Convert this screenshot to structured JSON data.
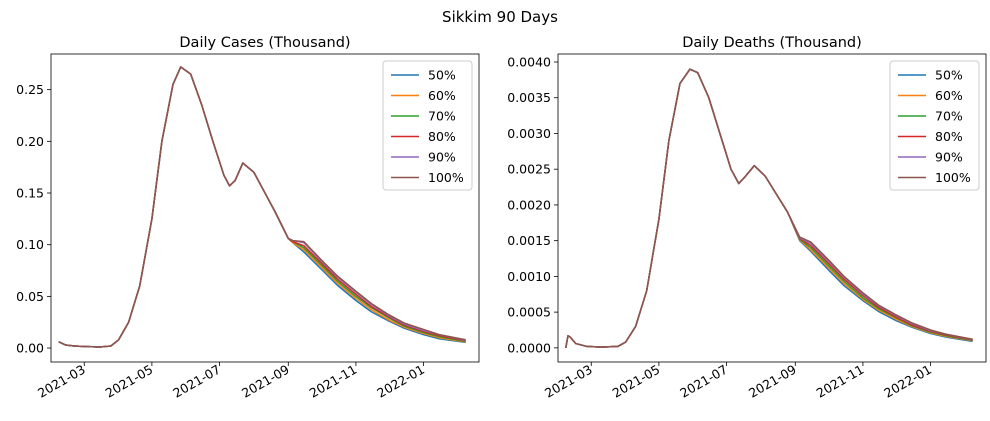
{
  "figure": {
    "suptitle": "Sikkim 90 Days"
  },
  "colors": {
    "50%": "#1f77b4",
    "60%": "#ff7f0e",
    "70%": "#2ca02c",
    "80%": "#d62728",
    "90%": "#9467bd",
    "100%": "#8c564b"
  },
  "chart_data": [
    {
      "type": "line",
      "title": "Daily Cases (Thousand)",
      "xlabel": "",
      "ylabel": "",
      "x_ticks": [
        "2021-03",
        "2021-05",
        "2021-07",
        "2021-09",
        "2021-11",
        "2022-01"
      ],
      "x_tick_dates": [
        "2021-03-01",
        "2021-05-01",
        "2021-07-01",
        "2021-09-01",
        "2021-11-01",
        "2022-01-01"
      ],
      "xlim": [
        "2021-01-30",
        "2022-02-20"
      ],
      "y_ticks": [
        "0.00",
        "0.05",
        "0.10",
        "0.15",
        "0.20",
        "0.25"
      ],
      "y_tick_values": [
        0,
        0.05,
        0.1,
        0.15,
        0.2,
        0.25
      ],
      "ylim": [
        -0.0135,
        0.2845
      ],
      "legend": "top-right",
      "grid": false,
      "base_curve": {
        "x": [
          "2021-02-06",
          "2021-02-12",
          "2021-02-20",
          "2021-03-01",
          "2021-03-15",
          "2021-03-25",
          "2021-04-01",
          "2021-04-10",
          "2021-04-20",
          "2021-05-01",
          "2021-05-10",
          "2021-05-20",
          "2021-05-27",
          "2021-06-05",
          "2021-06-15",
          "2021-06-25",
          "2021-07-05",
          "2021-07-10",
          "2021-07-15",
          "2021-07-22",
          "2021-08-01",
          "2021-08-10",
          "2021-08-20",
          "2021-09-01",
          "2021-09-15",
          "2021-10-01",
          "2021-10-15",
          "2021-11-01",
          "2021-11-15",
          "2021-12-01",
          "2021-12-15",
          "2022-01-01",
          "2022-01-15",
          "2022-02-08"
        ],
        "y": [
          0.006,
          0.003,
          0.002,
          0.0015,
          0.001,
          0.002,
          0.008,
          0.025,
          0.06,
          0.125,
          0.2,
          0.255,
          0.272,
          0.265,
          0.235,
          0.2,
          0.167,
          0.157,
          0.162,
          0.179,
          0.17,
          0.152,
          0.132,
          0.106,
          0.096,
          0.078,
          0.063,
          0.048,
          0.037,
          0.027,
          0.02,
          0.014,
          0.01,
          0.006
        ]
      },
      "series": [
        {
          "name": "50%",
          "x": [
            "2021-09-05",
            "2021-09-15",
            "2021-10-01",
            "2021-10-15",
            "2021-11-01",
            "2021-11-15",
            "2021-12-01",
            "2021-12-15",
            "2022-01-01",
            "2022-01-15",
            "2022-02-08"
          ],
          "y": [
            0.102,
            0.093,
            0.076,
            0.061,
            0.046,
            0.035,
            0.026,
            0.019,
            0.013,
            0.009,
            0.0055
          ]
        },
        {
          "name": "60%",
          "x": [
            "2021-09-05",
            "2021-09-15",
            "2021-10-01",
            "2021-10-15",
            "2021-11-01",
            "2021-11-15",
            "2021-12-01",
            "2021-12-15",
            "2022-01-01",
            "2022-01-15",
            "2022-02-08"
          ],
          "y": [
            0.102,
            0.095,
            0.078,
            0.063,
            0.048,
            0.037,
            0.027,
            0.02,
            0.014,
            0.01,
            0.006
          ]
        },
        {
          "name": "70%",
          "x": [
            "2021-09-05",
            "2021-09-15",
            "2021-10-01",
            "2021-10-15",
            "2021-11-01",
            "2021-11-15",
            "2021-12-01",
            "2021-12-15",
            "2022-01-01",
            "2022-01-15",
            "2022-02-08"
          ],
          "y": [
            0.103,
            0.097,
            0.08,
            0.065,
            0.05,
            0.039,
            0.029,
            0.021,
            0.015,
            0.011,
            0.0065
          ]
        },
        {
          "name": "80%",
          "x": [
            "2021-09-05",
            "2021-09-15",
            "2021-10-01",
            "2021-10-15",
            "2021-11-01",
            "2021-11-15",
            "2021-12-01",
            "2021-12-15",
            "2022-01-01",
            "2022-01-15",
            "2022-02-08"
          ],
          "y": [
            0.103,
            0.099,
            0.082,
            0.067,
            0.052,
            0.04,
            0.03,
            0.022,
            0.016,
            0.012,
            0.007
          ]
        },
        {
          "name": "90%",
          "x": [
            "2021-09-05",
            "2021-09-15",
            "2021-10-01",
            "2021-10-15",
            "2021-11-01",
            "2021-11-15",
            "2021-12-01",
            "2021-12-15",
            "2022-01-01",
            "2022-01-15",
            "2022-02-08"
          ],
          "y": [
            0.104,
            0.102,
            0.084,
            0.069,
            0.054,
            0.042,
            0.031,
            0.023,
            0.017,
            0.013,
            0.0075
          ]
        },
        {
          "name": "100%",
          "x": [
            "2021-09-05",
            "2021-09-15",
            "2021-10-01",
            "2021-10-15",
            "2021-11-01",
            "2021-11-15",
            "2021-12-01",
            "2021-12-15",
            "2022-01-01",
            "2022-01-15",
            "2022-02-08"
          ],
          "y": [
            0.104,
            0.103,
            0.085,
            0.07,
            0.055,
            0.043,
            0.032,
            0.024,
            0.018,
            0.013,
            0.008
          ]
        }
      ]
    },
    {
      "type": "line",
      "title": "Daily Deaths (Thousand)",
      "xlabel": "",
      "ylabel": "",
      "x_ticks": [
        "2021-03",
        "2021-05",
        "2021-07",
        "2021-09",
        "2021-11",
        "2022-01"
      ],
      "x_tick_dates": [
        "2021-03-01",
        "2021-05-01",
        "2021-07-01",
        "2021-09-01",
        "2021-11-01",
        "2022-01-01"
      ],
      "xlim": [
        "2021-01-30",
        "2022-02-20"
      ],
      "y_ticks": [
        "0.0000",
        "0.0005",
        "0.0010",
        "0.0015",
        "0.0020",
        "0.0025",
        "0.0030",
        "0.0035",
        "0.0040"
      ],
      "y_tick_values": [
        0,
        0.0005,
        0.001,
        0.0015,
        0.002,
        0.0025,
        0.003,
        0.0035,
        0.004
      ],
      "ylim": [
        -0.000198,
        0.004112
      ],
      "legend": "top-right",
      "grid": false,
      "base_curve": {
        "x": [
          "2021-02-06",
          "2021-02-08",
          "2021-02-10",
          "2021-02-15",
          "2021-02-25",
          "2021-03-10",
          "2021-03-25",
          "2021-04-01",
          "2021-04-10",
          "2021-04-20",
          "2021-05-01",
          "2021-05-10",
          "2021-05-20",
          "2021-05-29",
          "2021-06-05",
          "2021-06-15",
          "2021-06-25",
          "2021-07-05",
          "2021-07-12",
          "2021-07-18",
          "2021-07-26",
          "2021-08-05",
          "2021-08-15",
          "2021-08-25",
          "2021-09-05",
          "2021-09-15",
          "2021-10-01",
          "2021-10-15",
          "2021-11-01",
          "2021-11-15",
          "2021-12-01",
          "2021-12-15",
          "2022-01-01",
          "2022-01-15",
          "2022-02-08"
        ],
        "y": [
          0.0,
          0.00017,
          0.00015,
          6e-05,
          2e-05,
          1e-05,
          2e-05,
          8e-05,
          0.0003,
          0.0008,
          0.0018,
          0.0029,
          0.0037,
          0.0039,
          0.00385,
          0.0035,
          0.003,
          0.0025,
          0.0023,
          0.0024,
          0.00255,
          0.0024,
          0.00215,
          0.0019,
          0.00155,
          0.0014,
          0.00115,
          0.00092,
          0.0007,
          0.00054,
          0.00041,
          0.00031,
          0.00022,
          0.00016,
          0.0001
        ]
      },
      "series": [
        {
          "name": "50%",
          "x": [
            "2021-09-05",
            "2021-09-15",
            "2021-10-01",
            "2021-10-15",
            "2021-11-01",
            "2021-11-15",
            "2021-12-01",
            "2021-12-15",
            "2022-01-01",
            "2022-01-15",
            "2022-02-08"
          ],
          "y": [
            0.0015,
            0.00135,
            0.00109,
            0.00087,
            0.00066,
            0.00051,
            0.00038,
            0.00029,
            0.0002,
            0.00015,
            9e-05
          ]
        },
        {
          "name": "60%",
          "x": [
            "2021-09-05",
            "2021-09-15",
            "2021-10-01",
            "2021-10-15",
            "2021-11-01",
            "2021-11-15",
            "2021-12-01",
            "2021-12-15",
            "2022-01-01",
            "2022-01-15",
            "2022-02-08"
          ],
          "y": [
            0.00151,
            0.00137,
            0.00112,
            0.0009,
            0.00068,
            0.00053,
            0.0004,
            0.0003,
            0.00021,
            0.00016,
            0.0001
          ]
        },
        {
          "name": "70%",
          "x": [
            "2021-09-05",
            "2021-09-15",
            "2021-10-01",
            "2021-10-15",
            "2021-11-01",
            "2021-11-15",
            "2021-12-01",
            "2021-12-15",
            "2022-01-01",
            "2022-01-15",
            "2022-02-08"
          ],
          "y": [
            0.00152,
            0.0014,
            0.00115,
            0.00093,
            0.0007,
            0.00055,
            0.00042,
            0.00031,
            0.00022,
            0.00017,
            0.000105
          ]
        },
        {
          "name": "80%",
          "x": [
            "2021-09-05",
            "2021-09-15",
            "2021-10-01",
            "2021-10-15",
            "2021-11-01",
            "2021-11-15",
            "2021-12-01",
            "2021-12-15",
            "2022-01-01",
            "2022-01-15",
            "2022-02-08"
          ],
          "y": [
            0.00153,
            0.00143,
            0.00118,
            0.00096,
            0.00073,
            0.00057,
            0.00043,
            0.00032,
            0.00023,
            0.00018,
            0.00011
          ]
        },
        {
          "name": "90%",
          "x": [
            "2021-09-05",
            "2021-09-15",
            "2021-10-01",
            "2021-10-15",
            "2021-11-01",
            "2021-11-15",
            "2021-12-01",
            "2021-12-15",
            "2022-01-01",
            "2022-01-15",
            "2022-02-08"
          ],
          "y": [
            0.00154,
            0.00146,
            0.00121,
            0.00099,
            0.00075,
            0.00059,
            0.00045,
            0.00034,
            0.00024,
            0.00019,
            0.000115
          ]
        },
        {
          "name": "100%",
          "x": [
            "2021-09-05",
            "2021-09-15",
            "2021-10-01",
            "2021-10-15",
            "2021-11-01",
            "2021-11-15",
            "2021-12-01",
            "2021-12-15",
            "2022-01-01",
            "2022-01-15",
            "2022-02-08"
          ],
          "y": [
            0.00155,
            0.00148,
            0.00123,
            0.001,
            0.00077,
            0.0006,
            0.00046,
            0.00035,
            0.00025,
            0.00019,
            0.00012
          ]
        }
      ]
    }
  ]
}
